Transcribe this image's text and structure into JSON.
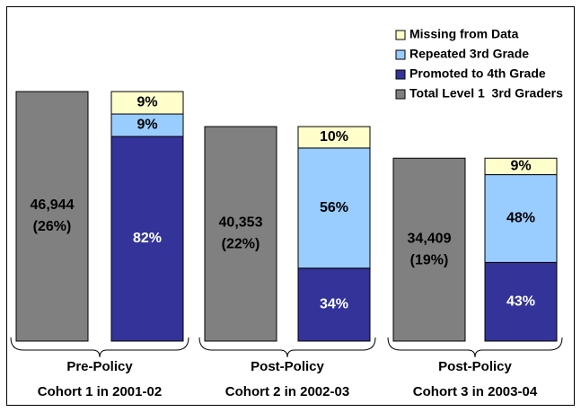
{
  "chart_data": {
    "type": "bar",
    "categories": [
      [
        "Pre-Policy",
        "Cohort 1 in 2001-02"
      ],
      [
        "Post-Policy",
        "Cohort 2 in 2002-03"
      ],
      [
        "Post-Policy",
        "Cohort 3 in 2003-04"
      ]
    ],
    "total": {
      "name": "Total Level 1  3rd Graders",
      "color": "#808080",
      "values": [
        46944,
        40353,
        34409
      ],
      "value_labels": [
        "46,944",
        "40,353",
        "34,409"
      ],
      "shares": [
        26,
        22,
        19
      ],
      "share_labels": [
        "(26%)",
        "(22%)",
        "(19%)"
      ]
    },
    "series": [
      {
        "name": "Promoted to 4th Grade",
        "color": "#333399",
        "label_color": "#ffffff",
        "values": [
          82,
          34,
          43
        ],
        "value_labels": [
          "82%",
          "34%",
          "43%"
        ]
      },
      {
        "name": "Repeated 3rd Grade",
        "color": "#99ccff",
        "label_color": "#000000",
        "values": [
          9,
          56,
          48
        ],
        "value_labels": [
          "9%",
          "56%",
          "48%"
        ]
      },
      {
        "name": "Missing from Data",
        "color": "#ffffcc",
        "label_color": "#000000",
        "values": [
          9,
          10,
          9
        ],
        "value_labels": [
          "9%",
          "10%",
          "9%"
        ]
      }
    ],
    "legend": "upper right"
  }
}
